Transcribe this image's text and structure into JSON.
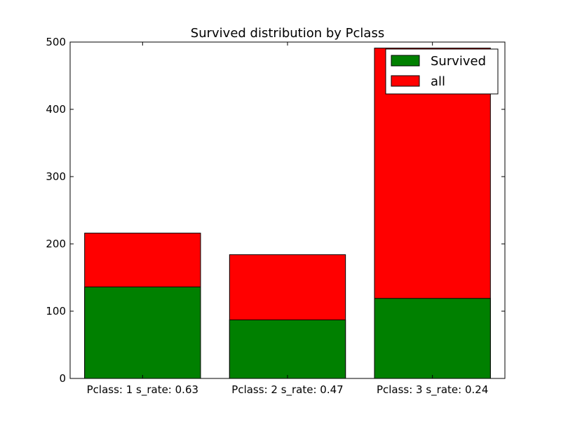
{
  "chart_data": {
    "type": "bar",
    "title": "Survived distribution by Pclass",
    "xlabel": "",
    "ylabel": "",
    "categories": [
      "Pclass: 1 s_rate: 0.63",
      "Pclass: 2 s_rate: 0.47",
      "Pclass: 3 s_rate: 0.24"
    ],
    "series": [
      {
        "name": "Survived",
        "values": [
          136,
          87,
          119
        ],
        "color": "#008000"
      },
      {
        "name": "all",
        "values": [
          216,
          184,
          491
        ],
        "color": "#ff0000"
      }
    ],
    "ylim": [
      0,
      500
    ],
    "yticks": [
      0,
      100,
      200,
      300,
      400,
      500
    ],
    "ytick_labels": [
      "0",
      "100",
      "200",
      "300",
      "400",
      "500"
    ],
    "grid": false,
    "legend_position": "top-right"
  }
}
